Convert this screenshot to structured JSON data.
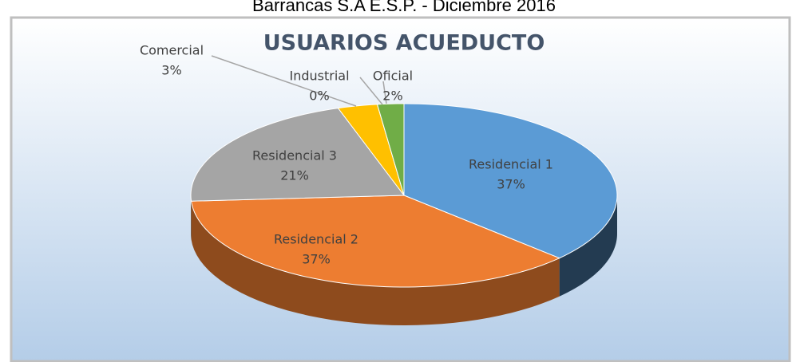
{
  "chart_data": {
    "type": "pie3d",
    "caption": "Barrancas S.A E.S.P. - Diciembre 2016",
    "title": "USUARIOS ACUEDUCTO",
    "categories": [
      "Residencial 1",
      "Residencial 2",
      "Residencial 3",
      "Comercial",
      "Industrial",
      "Oficial"
    ],
    "values": [
      37,
      37,
      21,
      3,
      0,
      2
    ],
    "value_labels": [
      "37%",
      "37%",
      "21%",
      "3%",
      "0%",
      "2%"
    ],
    "colors": [
      "#5b9bd5",
      "#ed7d31",
      "#a5a5a5",
      "#ffc000",
      "#4472c4",
      "#70ad47"
    ]
  }
}
